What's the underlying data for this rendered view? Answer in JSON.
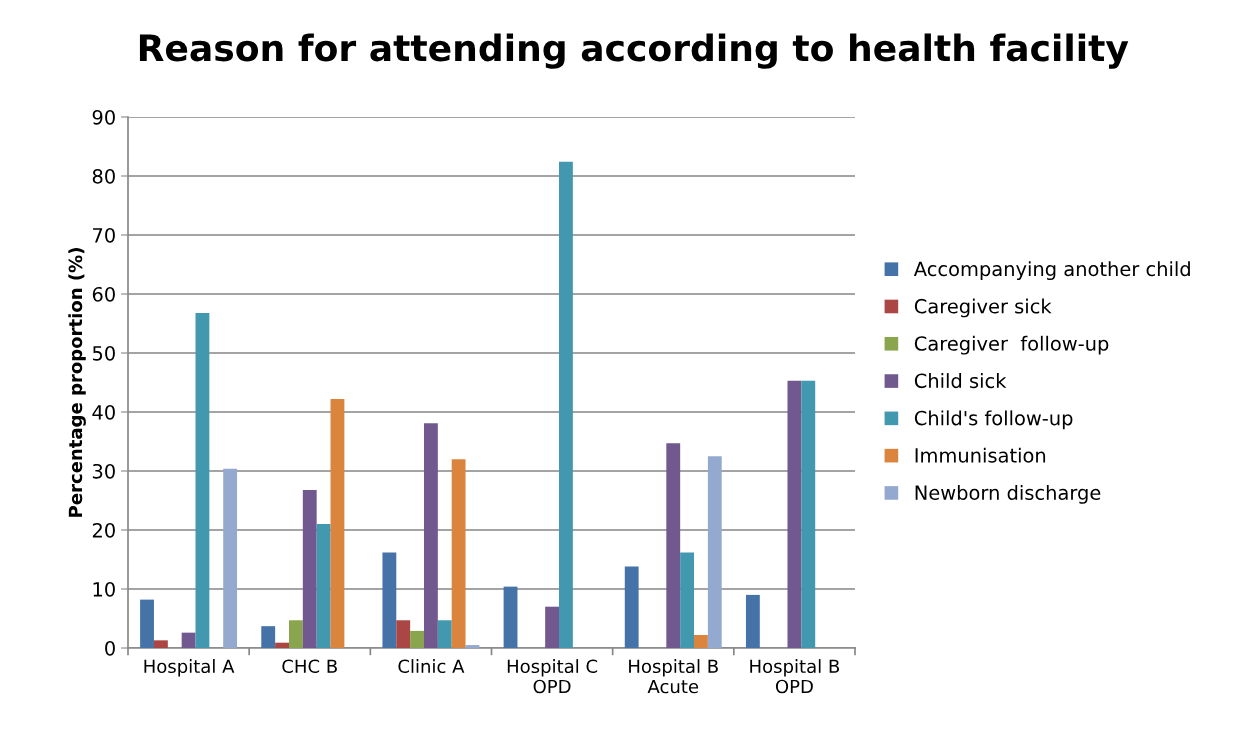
{
  "chart_data": {
    "type": "bar",
    "title": "Reason for attending according to health facility",
    "ylabel": "Percentage proportion (%)",
    "categories": [
      "Hospital A",
      "CHC B",
      "Clinic A",
      "Hospital C\nOPD",
      "Hospital B\nAcute",
      "Hospital B\nOPD"
    ],
    "series": [
      {
        "name": "Accompanying another child",
        "color": "#4572a7",
        "values": [
          8.2,
          3.7,
          16.2,
          10.4,
          13.8,
          9.0
        ]
      },
      {
        "name": "Caregiver sick",
        "color": "#aa4643",
        "values": [
          1.3,
          0.9,
          4.7,
          0,
          0,
          0
        ]
      },
      {
        "name": "Caregiver  follow-up",
        "color": "#89a54e",
        "values": [
          0,
          4.7,
          2.9,
          0,
          0,
          0
        ]
      },
      {
        "name": "Child sick",
        "color": "#71588f",
        "values": [
          2.6,
          26.8,
          38.1,
          7.0,
          34.7,
          45.3
        ]
      },
      {
        "name": "Child's follow-up",
        "color": "#4198af",
        "values": [
          56.8,
          21.0,
          4.7,
          82.4,
          16.2,
          45.3
        ]
      },
      {
        "name": "Immunisation",
        "color": "#db843d",
        "values": [
          0,
          42.2,
          32.0,
          0,
          2.2,
          0
        ]
      },
      {
        "name": "Newborn discharge",
        "color": "#93a9cf",
        "values": [
          30.4,
          0,
          0.5,
          0,
          32.5,
          0
        ]
      }
    ],
    "ylim": [
      0,
      90
    ],
    "yticks": [
      0,
      10,
      20,
      30,
      40,
      50,
      60,
      70,
      80,
      90
    ],
    "grid": "y",
    "legend": "right"
  }
}
